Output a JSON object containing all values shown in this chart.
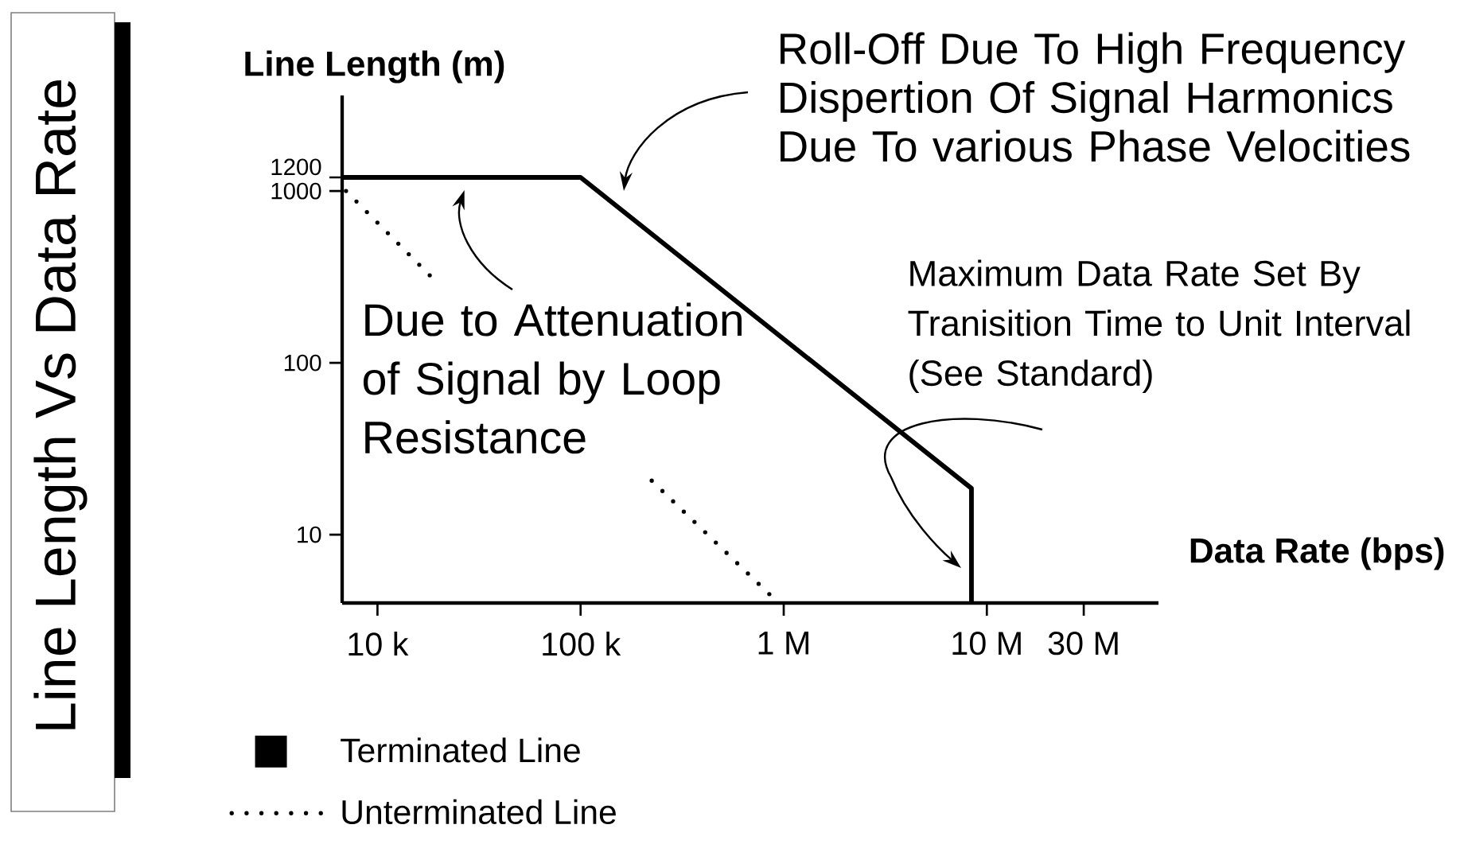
{
  "chart_data": {
    "type": "line",
    "title": "Line Length Vs Data Rate",
    "xlabel": "Data Rate (bps)",
    "ylabel": "Line Length (m)",
    "log": "xy",
    "xlim": [
      6700,
      70000000
    ],
    "ylim": [
      4,
      3600
    ],
    "xticks": [
      {
        "value": 10000,
        "label": "10 k"
      },
      {
        "value": 100000,
        "label": "100 k"
      },
      {
        "value": 1000000,
        "label": "1 M"
      },
      {
        "value": 10000000,
        "label": "10 M"
      },
      {
        "value": 30000000,
        "label": "30 M"
      }
    ],
    "yticks": [
      10,
      100,
      1000,
      1200
    ],
    "series": [
      {
        "name": "Terminated Line",
        "color": "#000000",
        "line_style": "solid",
        "x": [
          6700,
          100000,
          8400000,
          8400000
        ],
        "values": [
          1200,
          1200,
          18.6,
          4
        ]
      },
      {
        "name": "Unterminated Line",
        "color": "#000000",
        "line_style": "dotted",
        "x": [
          7000,
          19800,
          60000,
          224000,
          850000
        ],
        "values": [
          1000,
          290,
          null,
          20.6,
          4.5
        ]
      }
    ],
    "marker": "none",
    "legend": "bottom left",
    "annotations": [
      "Roll-Off Due To High Frequency Dispertion Of Signal Harmonics Due To various Phase Velocities",
      {
        "text": "Due to Attenuation of Signal by Loop Resistance",
        "x": 26800,
        "y": 1200
      },
      "Maximum Data Rate Set By Tranisition Time to Unit Interval (See Standard)"
    ]
  }
}
